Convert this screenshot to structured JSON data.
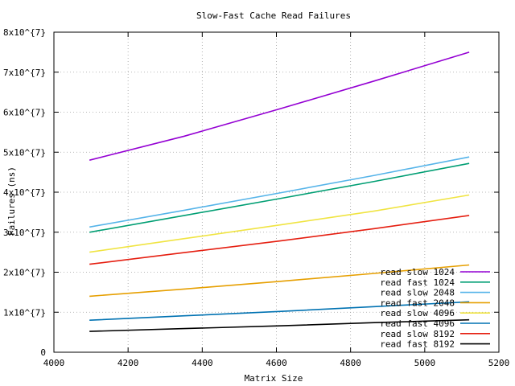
{
  "chart_data": {
    "type": "line",
    "title": "Slow-Fast Cache Read Failures",
    "xlabel": "Matrix Size",
    "ylabel": "Failures (ns)",
    "xlim": [
      4000,
      5200
    ],
    "ylim": [
      0,
      80000000
    ],
    "x_ticks": [
      4000,
      4200,
      4400,
      4600,
      4800,
      5000,
      5200
    ],
    "y_ticks": [
      0,
      10000000,
      20000000,
      30000000,
      40000000,
      50000000,
      60000000,
      70000000,
      80000000
    ],
    "x_tick_labels": [
      "4000",
      "4200",
      "4400",
      "4600",
      "4800",
      "5000",
      "5200"
    ],
    "y_tick_labels": [
      "0",
      "1x10^{7}",
      "2x10^{7}",
      "3x10^{7}",
      "4x10^{7}",
      "5x10^{7}",
      "6x10^{7}",
      "7x10^{7}",
      "8x10^{7}"
    ],
    "grid": true,
    "legend_position": "bottom-right",
    "x": [
      4096,
      4352,
      4608,
      4864,
      5120
    ],
    "series": [
      {
        "name": "read slow 1024",
        "color": "#9400d3",
        "values": [
          48000000,
          54000000,
          60800000,
          67800000,
          75000000
        ]
      },
      {
        "name": "read fast 1024",
        "color": "#009e73",
        "values": [
          30000000,
          34200000,
          38400000,
          42700000,
          47200000
        ]
      },
      {
        "name": "read slow 2048",
        "color": "#56b4e9",
        "values": [
          31300000,
          35500000,
          39800000,
          44200000,
          48800000
        ]
      },
      {
        "name": "read fast 2048",
        "color": "#e69f00",
        "values": [
          14000000,
          15800000,
          17700000,
          19700000,
          21800000
        ]
      },
      {
        "name": "read slow 4096",
        "color": "#f0e442",
        "values": [
          25000000,
          28400000,
          31800000,
          35300000,
          39300000
        ]
      },
      {
        "name": "read fast 4096",
        "color": "#0072b2",
        "values": [
          8000000,
          9100000,
          10200000,
          11400000,
          12600000
        ]
      },
      {
        "name": "read slow 8192",
        "color": "#e51e10",
        "values": [
          22000000,
          24900000,
          27800000,
          30900000,
          34200000
        ]
      },
      {
        "name": "read fast 8192",
        "color": "#000000",
        "values": [
          5200000,
          5900000,
          6600000,
          7400000,
          8100000
        ]
      }
    ]
  }
}
